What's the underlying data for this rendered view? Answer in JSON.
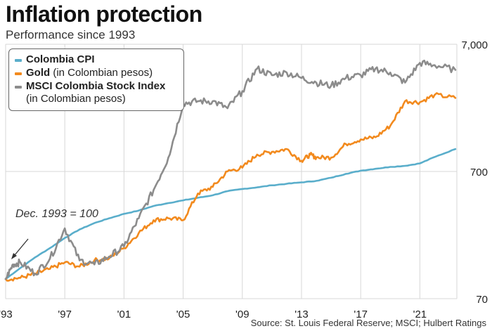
{
  "header": {
    "title": "Inflation protection",
    "subtitle": "Performance since 1993"
  },
  "source_text": "Source: St. Louis Federal Reserve; MSCI; Hulbert Ratings",
  "annotation_text": "Dec. 1993 = 100",
  "legend": {
    "items": [
      {
        "name": "Colombia CPI",
        "note": "",
        "note2": ""
      },
      {
        "name": "Gold",
        "note": " (in Colombian pesos)",
        "note2": ""
      },
      {
        "name": "MSCI Colombia Stock Index",
        "note": "",
        "note2": "(in Colombian pesos)"
      }
    ]
  },
  "colors": {
    "cpi": "#5aaecb",
    "gold": "#f28a1e",
    "msci": "#8c8c8c",
    "grid": "#d7d7d7"
  },
  "chart_data": {
    "type": "line",
    "title": "Inflation protection",
    "subtitle": "Performance since 1993",
    "y_scale": "log",
    "ylim": [
      70,
      7000
    ],
    "xlim": [
      1993,
      2023.5
    ],
    "x_ticks": [
      {
        "value": 1993,
        "label": "'93"
      },
      {
        "value": 1997,
        "label": "'97"
      },
      {
        "value": 2001,
        "label": "'01"
      },
      {
        "value": 2005,
        "label": "'05"
      },
      {
        "value": 2009,
        "label": "'09"
      },
      {
        "value": 2013,
        "label": "'13"
      },
      {
        "value": 2017,
        "label": "'17"
      },
      {
        "value": 2021,
        "label": "'21"
      }
    ],
    "y_ticks": [
      {
        "value": 70,
        "label": "70"
      },
      {
        "value": 700,
        "label": "700"
      },
      {
        "value": 7000,
        "label": "7,000"
      }
    ],
    "grid": true,
    "legend_position": "top-left",
    "series": [
      {
        "name": "Colombia CPI",
        "key": "cpi",
        "x": [
          1993,
          1994,
          1995,
          1996,
          1997,
          1998,
          1999,
          2000,
          2001,
          2002,
          2003,
          2004,
          2005,
          2006,
          2007,
          2008,
          2009,
          2010,
          2011,
          2012,
          2013,
          2014,
          2015,
          2016,
          2017,
          2018,
          2019,
          2020,
          2021,
          2022,
          2023.4
        ],
        "y": [
          100,
          122,
          148,
          175,
          210,
          245,
          275,
          300,
          325,
          345,
          375,
          395,
          415,
          435,
          455,
          490,
          510,
          525,
          545,
          560,
          575,
          590,
          625,
          670,
          710,
          735,
          760,
          775,
          810,
          910,
          1050
        ]
      },
      {
        "name": "Gold (in Colombian pesos)",
        "key": "gold",
        "x": [
          1993,
          1994,
          1995,
          1996,
          1997,
          1998,
          1999,
          2000,
          2001,
          2002,
          2003,
          2004,
          2005,
          2006,
          2007,
          2008,
          2009,
          2010,
          2011,
          2012,
          2013,
          2013.6,
          2014,
          2015,
          2016,
          2017,
          2018,
          2019,
          2020,
          2021,
          2022,
          2023.4
        ],
        "y": [
          100,
          102,
          110,
          120,
          135,
          125,
          140,
          145,
          175,
          230,
          290,
          300,
          290,
          470,
          530,
          700,
          750,
          950,
          1000,
          1050,
          850,
          950,
          900,
          900,
          1150,
          1250,
          1300,
          1600,
          2500,
          2450,
          2800,
          2650
        ]
      },
      {
        "name": "MSCI Colombia Stock Index",
        "key": "msci",
        "x": [
          1993,
          1993.5,
          1994,
          1995,
          1996,
          1997,
          1998,
          1999,
          2000,
          2001,
          2002,
          2003,
          2004,
          2005,
          2006,
          2007,
          2008,
          2009,
          2010,
          2011,
          2012,
          2013,
          2014,
          2015,
          2016,
          2017,
          2018,
          2019,
          2020,
          2021,
          2022,
          2023.4
        ],
        "y": [
          100,
          130,
          135,
          110,
          145,
          250,
          140,
          130,
          150,
          180,
          300,
          500,
          900,
          2400,
          2500,
          2500,
          2200,
          3000,
          4500,
          4000,
          4200,
          3800,
          3500,
          3300,
          3800,
          4000,
          4500,
          4200,
          3500,
          5000,
          4800,
          4400
        ]
      }
    ]
  }
}
